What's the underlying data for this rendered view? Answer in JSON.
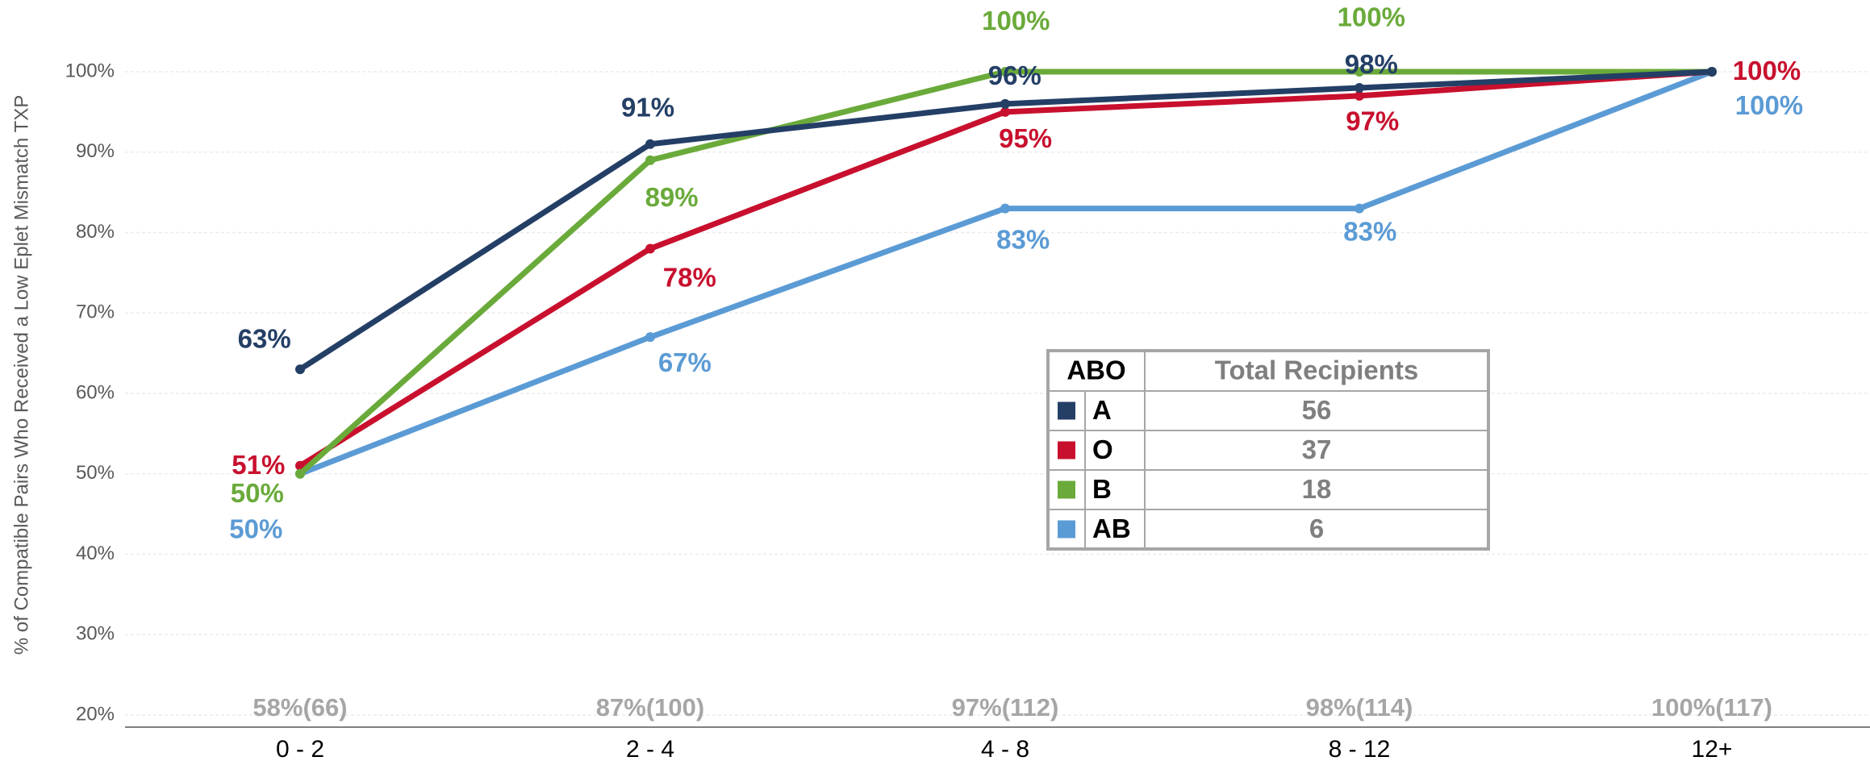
{
  "chart_data": {
    "type": "line",
    "y_axis_label": "% of Compatible Pairs Who Received a Low Eplet Mismatch TXP",
    "categories": [
      "0 - 2",
      "2 - 4",
      "4 - 8",
      "8 - 12",
      "12+"
    ],
    "ylim": [
      20,
      100
    ],
    "yticks": [
      {
        "value": 20,
        "label": "20%"
      },
      {
        "value": 30,
        "label": "30%"
      },
      {
        "value": 40,
        "label": "40%"
      },
      {
        "value": 50,
        "label": "50%"
      },
      {
        "value": 60,
        "label": "60%"
      },
      {
        "value": 70,
        "label": "70%"
      },
      {
        "value": 80,
        "label": "80%"
      },
      {
        "value": 90,
        "label": "90%"
      },
      {
        "value": 100,
        "label": "100%"
      }
    ],
    "grid": true,
    "series": [
      {
        "name": "A",
        "color": "#243f66",
        "values": [
          63,
          91,
          96,
          98,
          100
        ],
        "value_labels": [
          "63%",
          "91%",
          "96%",
          "98%",
          null
        ]
      },
      {
        "name": "O",
        "color": "#c8102e",
        "values": [
          51,
          78,
          95,
          97,
          100
        ],
        "value_labels": [
          "51%",
          "78%",
          "95%",
          "97%",
          "100%"
        ]
      },
      {
        "name": "B",
        "color": "#6aaa3a",
        "values": [
          50,
          89,
          100,
          100,
          100
        ],
        "value_labels": [
          "50%",
          "89%",
          "100%",
          "100%",
          null
        ]
      },
      {
        "name": "AB",
        "color": "#5b9bd5",
        "values": [
          50,
          67,
          83,
          83,
          100
        ],
        "value_labels": [
          "50%",
          "67%",
          "83%",
          "83%",
          "100%"
        ]
      }
    ],
    "bottom_labels": [
      {
        "percent": "58%",
        "count": "(66)"
      },
      {
        "percent": "87%",
        "count": "(100)"
      },
      {
        "percent": "97%",
        "count": "(112)"
      },
      {
        "percent": "98%",
        "count": "(114)"
      },
      {
        "percent": "100%",
        "count": "(117)"
      }
    ],
    "legend_table": {
      "headers": [
        "ABO",
        "Total Recipients"
      ],
      "counts": [
        56,
        37,
        18,
        6
      ]
    }
  }
}
